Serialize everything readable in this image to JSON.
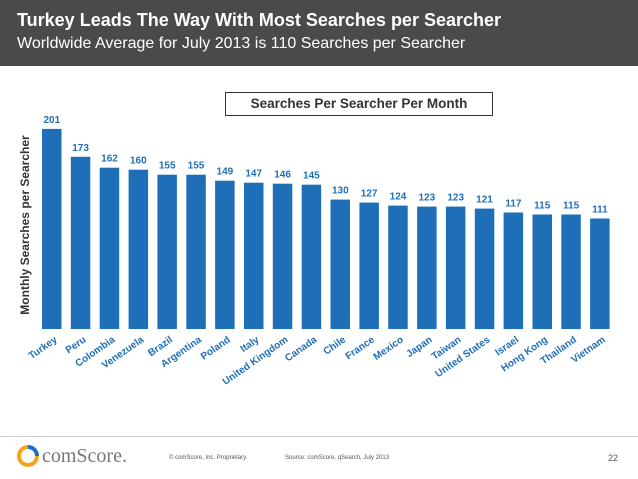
{
  "header": {
    "title": "Turkey Leads The Way With Most Searches per Searcher",
    "subtitle": "Worldwide Average for July 2013 is 110 Searches per Searcher"
  },
  "chart_data": {
    "type": "bar",
    "title": "Searches Per Searcher Per Month",
    "xlabel": "",
    "ylabel": "Monthly Searches per Searcher",
    "ylim": [
      0,
      220
    ],
    "categories": [
      "Turkey",
      "Peru",
      "Colombia",
      "Venezuela",
      "Brazil",
      "Argentina",
      "Poland",
      "Italy",
      "United Kingdom",
      "Canada",
      "Chile",
      "France",
      "Mexico",
      "Japan",
      "Taiwan",
      "United States",
      "Israel",
      "Hong Kong",
      "Thailand",
      "Vietnam"
    ],
    "values": [
      201,
      173,
      162,
      160,
      155,
      155,
      149,
      147,
      146,
      145,
      130,
      127,
      124,
      123,
      123,
      121,
      117,
      115,
      115,
      111
    ],
    "color": "#1f6fb8"
  },
  "footer": {
    "brand": "comScore.",
    "copyright": "© comScore, Inc.    Proprietary.",
    "source": "Source: comScore, qSearch, July 2013",
    "page": "22"
  },
  "colors": {
    "header_bg": "#4a4a4a",
    "bar": "#1f6fb8",
    "logo_orange": "#f5a21b",
    "logo_blue": "#1f6fb8"
  }
}
